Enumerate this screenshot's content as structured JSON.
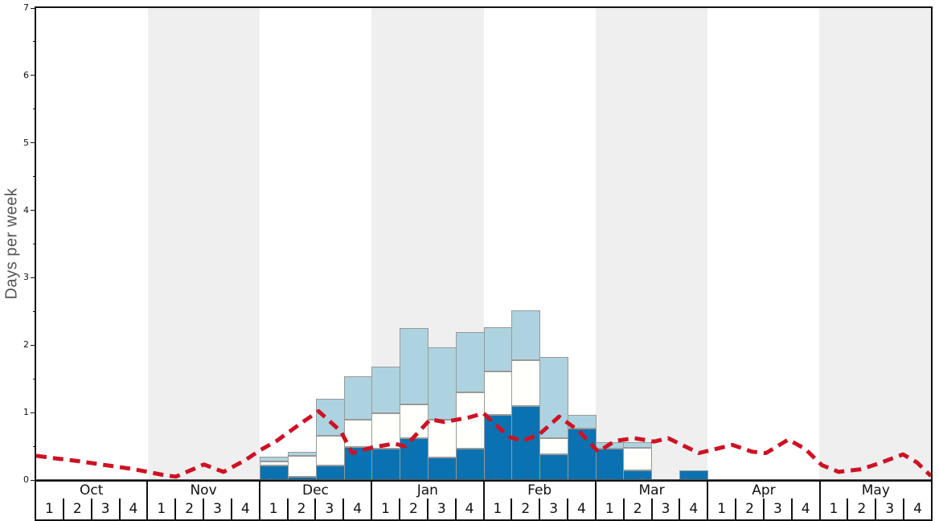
{
  "figure": {
    "ylabel": "Days per week"
  },
  "chart_data": {
    "type": "stacked-bar+line",
    "title": "",
    "xlabel": "",
    "ylabel": "Days per week",
    "ylim": [
      0,
      7
    ],
    "y_major_ticks": [
      0,
      1,
      2,
      3,
      4,
      5,
      6,
      7
    ],
    "y_minor_tick_step": 0.5,
    "grid": false,
    "legend": "none",
    "x_months": [
      "Oct",
      "Nov",
      "Dec",
      "Jan",
      "Feb",
      "Mar",
      "Apr",
      "May"
    ],
    "weeks_per_month": [
      "1",
      "2",
      "3",
      "4"
    ],
    "shaded_months": [
      "Nov",
      "Jan",
      "Mar",
      "May"
    ],
    "categories": [
      "Oct w1",
      "Oct w2",
      "Oct w3",
      "Oct w4",
      "Nov w1",
      "Nov w2",
      "Nov w3",
      "Nov w4",
      "Dec w1",
      "Dec w2",
      "Dec w3",
      "Dec w4",
      "Jan w1",
      "Jan w2",
      "Jan w3",
      "Jan w4",
      "Feb w1",
      "Feb w2",
      "Feb w3",
      "Feb w4",
      "Mar w1",
      "Mar w2",
      "Mar w3",
      "Mar w4",
      "Apr w1",
      "Apr w2",
      "Apr w3",
      "Apr w4",
      "May w1",
      "May w2",
      "May w3",
      "May w4"
    ],
    "colors": {
      "dark_blue": "#0b72b1",
      "white": "#fffffb",
      "light_blue": "#aed3e0",
      "bar_border": "#999999",
      "line_red": "#cd1225",
      "band_gray": "#efefef",
      "axis": "#111111"
    },
    "series": [
      {
        "name": "dark-blue-days",
        "stack_order": 1,
        "color_key": "dark_blue",
        "values": [
          0,
          0,
          0,
          0,
          0,
          0,
          0,
          0,
          0.21,
          0.05,
          0.22,
          0.49,
          0.47,
          0.62,
          0.33,
          0.46,
          0.96,
          1.1,
          0.38,
          0.76,
          0.47,
          0.14,
          0,
          0.14,
          0,
          0,
          0,
          0,
          0,
          0,
          0,
          0
        ]
      },
      {
        "name": "white-days",
        "stack_order": 2,
        "color_key": "white",
        "values": [
          0,
          0,
          0,
          0,
          0,
          0,
          0,
          0,
          0.06,
          0.31,
          0.43,
          0.41,
          0.52,
          0.5,
          0.57,
          0.84,
          0.65,
          0.68,
          0.24,
          0,
          0,
          0.34,
          0,
          0,
          0,
          0,
          0,
          0,
          0,
          0,
          0,
          0
        ]
      },
      {
        "name": "light-blue-days",
        "stack_order": 3,
        "color_key": "light_blue",
        "values": [
          0,
          0,
          0,
          0,
          0,
          0,
          0,
          0,
          0.08,
          0.06,
          0.55,
          0.64,
          0.69,
          1.13,
          1.07,
          0.89,
          0.65,
          0.74,
          1.2,
          0.21,
          0.09,
          0.08,
          0,
          0,
          0,
          0,
          0,
          0,
          0,
          0,
          0,
          0
        ]
      }
    ],
    "line_series": {
      "name": "red-dashed-line",
      "style": "dashed",
      "color_key": "line_red",
      "points_x_in_weeks": true,
      "points": [
        [
          0.0,
          0.36
        ],
        [
          0.5,
          0.33
        ],
        [
          1.5,
          0.28
        ],
        [
          2.5,
          0.22
        ],
        [
          3.5,
          0.16
        ],
        [
          4.6,
          0.07
        ],
        [
          5.0,
          0.05
        ],
        [
          6.0,
          0.23
        ],
        [
          6.7,
          0.12
        ],
        [
          7.5,
          0.3
        ],
        [
          8.0,
          0.44
        ],
        [
          8.6,
          0.58
        ],
        [
          9.5,
          0.85
        ],
        [
          10.1,
          1.02
        ],
        [
          10.9,
          0.72
        ],
        [
          11.3,
          0.4
        ],
        [
          12.0,
          0.48
        ],
        [
          12.8,
          0.54
        ],
        [
          13.2,
          0.5
        ],
        [
          14.1,
          0.9
        ],
        [
          14.6,
          0.86
        ],
        [
          15.5,
          0.93
        ],
        [
          16.0,
          0.99
        ],
        [
          16.9,
          0.64
        ],
        [
          17.4,
          0.58
        ],
        [
          18.0,
          0.68
        ],
        [
          18.7,
          0.94
        ],
        [
          19.4,
          0.73
        ],
        [
          20.1,
          0.42
        ],
        [
          20.7,
          0.58
        ],
        [
          21.4,
          0.62
        ],
        [
          22.1,
          0.57
        ],
        [
          22.6,
          0.62
        ],
        [
          23.7,
          0.4
        ],
        [
          24.9,
          0.52
        ],
        [
          25.6,
          0.42
        ],
        [
          26.1,
          0.4
        ],
        [
          26.9,
          0.6
        ],
        [
          27.5,
          0.46
        ],
        [
          28.1,
          0.22
        ],
        [
          28.7,
          0.12
        ],
        [
          29.5,
          0.16
        ],
        [
          30.1,
          0.24
        ],
        [
          31.0,
          0.38
        ],
        [
          31.5,
          0.26
        ],
        [
          32.0,
          0.06
        ]
      ]
    }
  }
}
